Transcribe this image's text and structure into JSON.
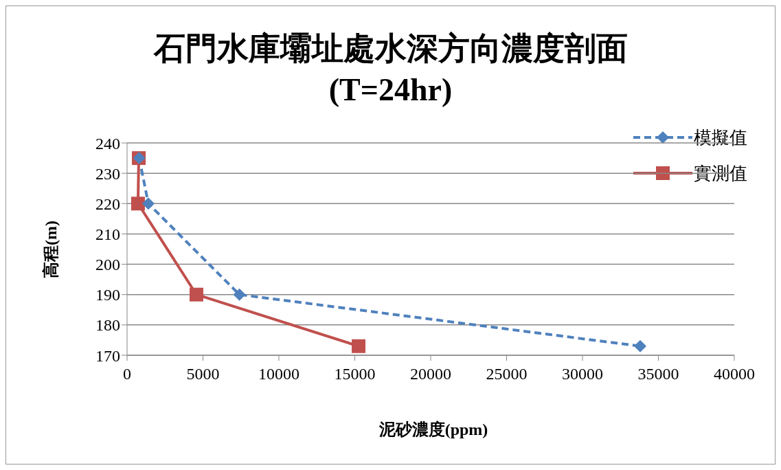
{
  "chart_data": {
    "type": "line",
    "title": "石門水庫壩址處水深方向濃度剖面",
    "subtitle": "(T=24hr)",
    "xlabel": "泥砂濃度(ppm)",
    "ylabel": "高程(m)",
    "xlim": [
      0,
      40000
    ],
    "xticks": [
      0,
      5000,
      10000,
      15000,
      20000,
      25000,
      30000,
      35000,
      40000
    ],
    "ylim": [
      170,
      240
    ],
    "yticks": [
      170,
      180,
      190,
      200,
      210,
      220,
      230,
      240
    ],
    "grid": "y",
    "legend": "top right",
    "series": [
      {
        "name": "模擬值",
        "color": "#4f81bd",
        "marker": "diamond",
        "line_style": "dashed",
        "x": [
          800,
          1400,
          7400,
          33800
        ],
        "values": [
          235,
          220,
          190,
          173
        ]
      },
      {
        "name": "實測值",
        "color": "#c0504d",
        "marker": "square",
        "line_style": "solid",
        "x": [
          770,
          720,
          4570,
          15250
        ],
        "values": [
          235,
          220,
          190,
          173
        ]
      }
    ]
  }
}
